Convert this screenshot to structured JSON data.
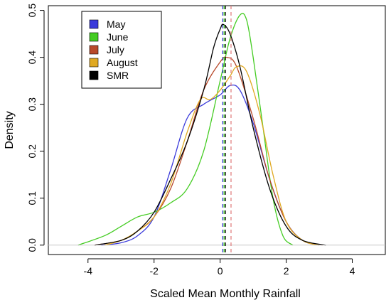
{
  "chart_data": {
    "type": "line",
    "title": "",
    "xlabel": "Scaled Mean Monthly Rainfall",
    "ylabel": "Density",
    "xlim": [
      -5.2,
      5.0
    ],
    "ylim": [
      -0.02,
      0.51
    ],
    "x_ticks": [
      -4,
      -2,
      0,
      2,
      4
    ],
    "x_tick_labels": [
      "-4",
      "-2",
      "0",
      "2",
      "4"
    ],
    "y_ticks": [
      0.0,
      0.1,
      0.2,
      0.3,
      0.4,
      0.5
    ],
    "y_tick_labels": [
      "0.0",
      "0.1",
      "0.2",
      "0.3",
      "0.4",
      "0.5"
    ],
    "grid": false,
    "legend_position": "top-left",
    "series": [
      {
        "name": "May",
        "color": "#3b3bdb",
        "x": [
          -3.6,
          -3.0,
          -2.5,
          -2.0,
          -1.5,
          -1.0,
          -0.5,
          0.0,
          0.3,
          0.6,
          1.0,
          1.5,
          2.0,
          2.5,
          3.0
        ],
        "y": [
          0.0,
          0.005,
          0.02,
          0.06,
          0.16,
          0.27,
          0.3,
          0.32,
          0.34,
          0.33,
          0.26,
          0.14,
          0.05,
          0.01,
          0.0
        ]
      },
      {
        "name": "June",
        "color": "#44cc22",
        "x": [
          -4.3,
          -3.5,
          -3.0,
          -2.5,
          -2.0,
          -1.5,
          -1.0,
          -0.5,
          0.0,
          0.3,
          0.6,
          0.8,
          1.0,
          1.3,
          1.6,
          1.9,
          2.2
        ],
        "y": [
          0.0,
          0.02,
          0.04,
          0.06,
          0.07,
          0.09,
          0.12,
          0.2,
          0.35,
          0.44,
          0.49,
          0.48,
          0.4,
          0.25,
          0.1,
          0.02,
          0.0
        ]
      },
      {
        "name": "July",
        "color": "#b8492a",
        "x": [
          -3.8,
          -3.0,
          -2.5,
          -2.0,
          -1.5,
          -1.0,
          -0.5,
          0.0,
          0.2,
          0.5,
          1.0,
          1.5,
          2.0,
          2.5,
          3.1
        ],
        "y": [
          0.0,
          0.01,
          0.03,
          0.06,
          0.12,
          0.22,
          0.33,
          0.39,
          0.4,
          0.38,
          0.27,
          0.14,
          0.05,
          0.01,
          0.0
        ]
      },
      {
        "name": "August",
        "color": "#e0a922",
        "x": [
          -3.5,
          -3.0,
          -2.5,
          -2.0,
          -1.5,
          -1.0,
          -0.6,
          -0.3,
          0.0,
          0.3,
          0.5,
          0.8,
          1.2,
          1.6,
          2.0,
          2.5,
          3.0
        ],
        "y": [
          0.0,
          0.01,
          0.03,
          0.06,
          0.13,
          0.24,
          0.31,
          0.31,
          0.33,
          0.36,
          0.38,
          0.37,
          0.28,
          0.15,
          0.05,
          0.01,
          0.0
        ]
      },
      {
        "name": "SMR",
        "color": "#000000",
        "x": [
          -3.8,
          -3.0,
          -2.5,
          -2.0,
          -1.5,
          -1.0,
          -0.5,
          -0.2,
          0.0,
          0.1,
          0.3,
          0.6,
          1.0,
          1.5,
          2.0,
          2.5,
          3.2
        ],
        "y": [
          0.0,
          0.01,
          0.03,
          0.07,
          0.14,
          0.22,
          0.33,
          0.42,
          0.46,
          0.47,
          0.45,
          0.38,
          0.25,
          0.12,
          0.04,
          0.01,
          0.0
        ]
      }
    ],
    "vlines": [
      {
        "x": 0.08,
        "color": "#3b3bdb",
        "style": "dashed"
      },
      {
        "x": 0.12,
        "color": "#44cc22",
        "style": "dashed"
      },
      {
        "x": 0.16,
        "color": "#000000",
        "style": "dashed"
      },
      {
        "x": 0.33,
        "color": "#e08080",
        "style": "dashed"
      }
    ]
  }
}
